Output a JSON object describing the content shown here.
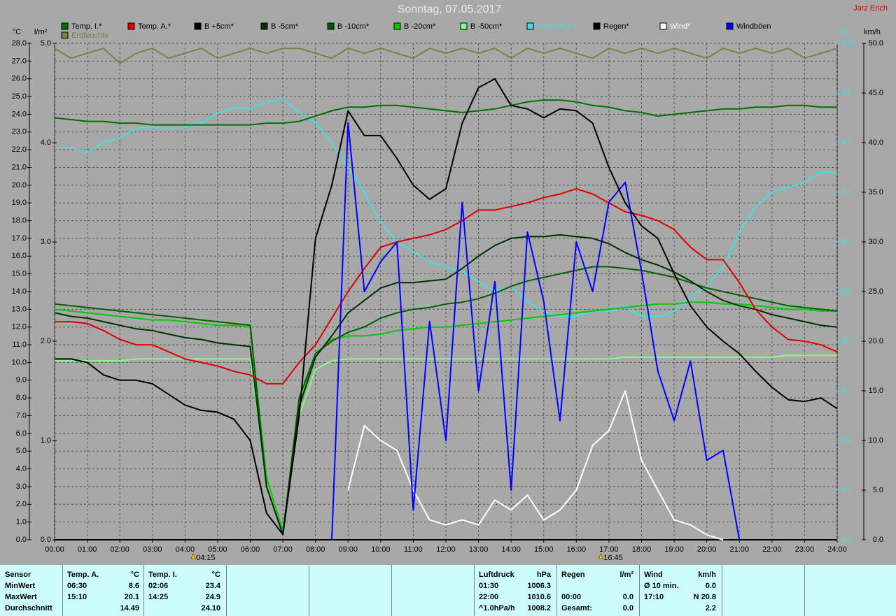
{
  "chart_data": {
    "type": "line",
    "title": "Sonntag, 07.05.2017",
    "author": "Jarz Erich",
    "y_label": "°C",
    "y2_label": "l/m²",
    "y3_label": "%",
    "y4_label": "km/h",
    "grid": true,
    "xlim": [
      0,
      24
    ],
    "xticks": [
      {
        "value": 0,
        "label": "00:00"
      },
      {
        "value": 1,
        "label": "01:00"
      },
      {
        "value": 2,
        "label": "02:00"
      },
      {
        "value": 3,
        "label": "03:00"
      },
      {
        "value": 4,
        "label": "04:00"
      },
      {
        "value": 5,
        "label": "05:00"
      },
      {
        "value": 6,
        "label": "06:00"
      },
      {
        "value": 7,
        "label": "07:00"
      },
      {
        "value": 8,
        "label": "08:00"
      },
      {
        "value": 9,
        "label": "09:00"
      },
      {
        "value": 10,
        "label": "10:00"
      },
      {
        "value": 11,
        "label": "11:00"
      },
      {
        "value": 12,
        "label": "12:00"
      },
      {
        "value": 13,
        "label": "13:00"
      },
      {
        "value": 14,
        "label": "14:00"
      },
      {
        "value": 15,
        "label": "15:00"
      },
      {
        "value": 16,
        "label": "16:00"
      },
      {
        "value": 17,
        "label": "17:00"
      },
      {
        "value": 18,
        "label": "18:00"
      },
      {
        "value": 19,
        "label": "19:00"
      },
      {
        "value": 20,
        "label": "20:00"
      },
      {
        "value": 21,
        "label": "21:00"
      },
      {
        "value": 22,
        "label": "22:00"
      },
      {
        "value": 23,
        "label": "23:00"
      },
      {
        "value": 24,
        "label": "24:00"
      }
    ],
    "ylim": [
      0,
      28
    ],
    "yticks": [
      {
        "value": 0,
        "label": "0.0"
      },
      {
        "value": 1,
        "label": "1.0"
      },
      {
        "value": 2,
        "label": "2.0"
      },
      {
        "value": 3,
        "label": "3.0"
      },
      {
        "value": 4,
        "label": "4.0"
      },
      {
        "value": 5,
        "label": "5.0"
      },
      {
        "value": 6,
        "label": "6.0"
      },
      {
        "value": 7,
        "label": "7.0"
      },
      {
        "value": 8,
        "label": "8.0"
      },
      {
        "value": 9,
        "label": "9.0"
      },
      {
        "value": 10,
        "label": "10.0"
      },
      {
        "value": 11,
        "label": "11.0"
      },
      {
        "value": 12,
        "label": "12.0"
      },
      {
        "value": 13,
        "label": "13.0"
      },
      {
        "value": 14,
        "label": "14.0"
      },
      {
        "value": 15,
        "label": "15.0"
      },
      {
        "value": 16,
        "label": "16.0"
      },
      {
        "value": 17,
        "label": "17.0"
      },
      {
        "value": 18,
        "label": "18.0"
      },
      {
        "value": 19,
        "label": "19.0"
      },
      {
        "value": 20,
        "label": "20.0"
      },
      {
        "value": 21,
        "label": "21.0"
      },
      {
        "value": 22,
        "label": "22.0"
      },
      {
        "value": 23,
        "label": "23.0"
      },
      {
        "value": 24,
        "label": "24.0"
      },
      {
        "value": 25,
        "label": "25.0"
      },
      {
        "value": 26,
        "label": "26.0"
      },
      {
        "value": 27,
        "label": "27.0"
      },
      {
        "value": 28,
        "label": "28.0"
      }
    ],
    "y2lim": [
      0,
      5
    ],
    "y2ticks": [
      {
        "value": 0,
        "label": "0.0"
      },
      {
        "value": 1,
        "label": "1.0"
      },
      {
        "value": 2,
        "label": "2.0"
      },
      {
        "value": 3,
        "label": "3.0"
      },
      {
        "value": 4,
        "label": "4.0"
      },
      {
        "value": 5,
        "label": "5.0"
      }
    ],
    "y3lim": [
      0,
      100
    ],
    "y3ticks": [
      {
        "value": 0,
        "label": "0.0"
      },
      10,
      20,
      30,
      40,
      50,
      60,
      70,
      80,
      90,
      100
    ],
    "y4lim": [
      0,
      50
    ],
    "y4ticks": [
      {
        "value": 0,
        "label": "0.0"
      },
      {
        "value": 5,
        "label": "5.0"
      },
      {
        "value": 10,
        "label": "10.0"
      },
      {
        "value": 15,
        "label": "15.0"
      },
      {
        "value": 20,
        "label": "20.0"
      },
      {
        "value": 25,
        "label": "25.0"
      },
      {
        "value": 30,
        "label": "30.0"
      },
      {
        "value": 35,
        "label": "35.0"
      },
      {
        "value": 40,
        "label": "40.0"
      },
      {
        "value": 45,
        "label": "45.0"
      },
      {
        "value": 50,
        "label": "50.0"
      }
    ],
    "annotations": [
      {
        "x": 4.25,
        "label": "04:15"
      },
      {
        "x": 16.75,
        "label": "16:45"
      }
    ],
    "x": [
      0,
      0.5,
      1,
      1.5,
      2,
      2.5,
      3,
      3.5,
      4,
      4.5,
      5,
      5.5,
      6,
      6.5,
      7,
      7.5,
      8,
      8.5,
      9,
      9.5,
      10,
      10.5,
      11,
      11.5,
      12,
      12.5,
      13,
      13.5,
      14,
      14.5,
      15,
      15.5,
      16,
      16.5,
      17,
      17.5,
      18,
      18.5,
      19,
      19.5,
      20,
      20.5,
      21,
      21.5,
      22,
      22.5,
      23,
      23.5,
      24
    ],
    "series": [
      {
        "name": "Temp. I.*",
        "color": "#007000",
        "axis": "y",
        "values": [
          23.8,
          23.7,
          23.6,
          23.6,
          23.5,
          23.5,
          23.4,
          23.4,
          23.4,
          23.4,
          23.4,
          23.4,
          23.4,
          23.5,
          23.5,
          23.6,
          23.9,
          24.2,
          24.4,
          24.4,
          24.5,
          24.5,
          24.4,
          24.3,
          24.2,
          24.1,
          24.2,
          24.3,
          24.5,
          24.7,
          24.8,
          24.8,
          24.7,
          24.5,
          24.4,
          24.2,
          24.1,
          23.9,
          24.0,
          24.1,
          24.2,
          24.3,
          24.3,
          24.4,
          24.4,
          24.5,
          24.5,
          24.4,
          24.4
        ]
      },
      {
        "name": "Temp. A.*",
        "color": "#e00000",
        "axis": "y",
        "values": [
          12.3,
          12.3,
          12.2,
          11.8,
          11.3,
          11.0,
          11.0,
          10.6,
          10.2,
          10.0,
          9.8,
          9.5,
          9.3,
          8.8,
          8.8,
          10.0,
          11.0,
          12.5,
          14.0,
          15.3,
          16.5,
          16.8,
          17.0,
          17.2,
          17.5,
          18.0,
          18.6,
          18.6,
          18.8,
          19.0,
          19.3,
          19.5,
          19.8,
          19.5,
          19.0,
          18.5,
          18.3,
          18.0,
          17.5,
          16.5,
          15.8,
          15.8,
          14.5,
          13.0,
          12.0,
          11.3,
          11.2,
          11.0,
          10.6
        ]
      },
      {
        "name": "B +5cm*",
        "color": "#000000",
        "axis": "y",
        "values": [
          10.2,
          10.2,
          10.0,
          9.3,
          9.0,
          9.0,
          8.8,
          8.2,
          7.6,
          7.3,
          7.2,
          6.8,
          5.6,
          1.5,
          0.3,
          7.0,
          17.0,
          20.0,
          24.2,
          22.8,
          22.8,
          21.5,
          20.0,
          19.2,
          19.8,
          23.5,
          25.5,
          26.0,
          24.5,
          24.3,
          23.8,
          24.3,
          24.2,
          23.5,
          21.0,
          19.0,
          17.7,
          17.0,
          15.0,
          13.2,
          12.0,
          11.2,
          10.5,
          9.5,
          8.6,
          7.9,
          7.8,
          8.0,
          7.4
        ]
      },
      {
        "name": "B -5cm*",
        "color": "#003000",
        "axis": "y",
        "values": [
          12.8,
          12.6,
          12.5,
          12.3,
          12.1,
          11.9,
          11.8,
          11.6,
          11.4,
          11.3,
          11.1,
          11.0,
          10.9,
          3.0,
          0.3,
          7.5,
          10.3,
          11.5,
          12.8,
          13.5,
          14.2,
          14.5,
          14.5,
          14.6,
          14.7,
          15.3,
          16.0,
          16.6,
          17.0,
          17.1,
          17.1,
          17.2,
          17.1,
          17.0,
          16.7,
          16.2,
          15.8,
          15.5,
          15.1,
          14.6,
          14.0,
          13.5,
          13.2,
          13.0,
          12.7,
          12.5,
          12.3,
          12.1,
          12.0
        ]
      },
      {
        "name": "B -10cm*",
        "color": "#006000",
        "axis": "y",
        "values": [
          13.3,
          13.2,
          13.1,
          13.0,
          12.9,
          12.8,
          12.7,
          12.6,
          12.5,
          12.4,
          12.3,
          12.2,
          12.1,
          3.0,
          0.3,
          8.0,
          10.5,
          11.2,
          11.7,
          12.0,
          12.5,
          12.8,
          13.0,
          13.1,
          13.3,
          13.4,
          13.6,
          13.9,
          14.3,
          14.6,
          14.8,
          15.0,
          15.2,
          15.4,
          15.4,
          15.3,
          15.2,
          15.0,
          14.8,
          14.5,
          14.2,
          14.0,
          13.8,
          13.6,
          13.4,
          13.2,
          13.1,
          13.0,
          12.9
        ]
      },
      {
        "name": "B -20cm*",
        "color": "#00cc00",
        "axis": "y",
        "values": [
          13.0,
          12.9,
          12.8,
          12.7,
          12.6,
          12.5,
          12.4,
          12.4,
          12.3,
          12.2,
          12.1,
          12.1,
          12.0,
          3.5,
          0.5,
          7.5,
          10.5,
          11.3,
          11.5,
          11.5,
          11.6,
          11.8,
          11.9,
          12.0,
          12.0,
          12.1,
          12.2,
          12.3,
          12.4,
          12.5,
          12.6,
          12.7,
          12.8,
          12.9,
          13.0,
          13.1,
          13.2,
          13.3,
          13.3,
          13.4,
          13.4,
          13.3,
          13.3,
          13.2,
          13.1,
          13.0,
          13.0,
          12.9,
          12.9
        ]
      },
      {
        "name": "B -50cm*",
        "color": "#80ff80",
        "axis": "y",
        "values": [
          10.1,
          10.1,
          10.1,
          10.1,
          10.1,
          10.2,
          10.2,
          10.2,
          10.2,
          10.2,
          10.2,
          10.2,
          10.2,
          3.5,
          0.5,
          7.0,
          9.6,
          10.1,
          10.2,
          10.2,
          10.2,
          10.2,
          10.2,
          10.2,
          10.2,
          10.2,
          10.2,
          10.2,
          10.2,
          10.2,
          10.2,
          10.2,
          10.2,
          10.2,
          10.2,
          10.3,
          10.3,
          10.3,
          10.3,
          10.3,
          10.3,
          10.3,
          10.3,
          10.3,
          10.3,
          10.4,
          10.4,
          10.4,
          10.4
        ]
      },
      {
        "name": "Feuchte A.*",
        "color": "#40e0e0",
        "axis": "y3",
        "legend_text_colored": true,
        "values": [
          79,
          79,
          78,
          80,
          81,
          83,
          83,
          83,
          83,
          84,
          86,
          87,
          87,
          88,
          89,
          86,
          84,
          80,
          75,
          70,
          64,
          60,
          58,
          56,
          55,
          54,
          52,
          50,
          51,
          48,
          46,
          45,
          45,
          46,
          46,
          47,
          45,
          45,
          46,
          49,
          51,
          55,
          62,
          67,
          70,
          71,
          72,
          74,
          74
        ]
      },
      {
        "name": "Regen*",
        "color": "#000000",
        "axis": "y2",
        "values": [
          0,
          0,
          0,
          0,
          0,
          0,
          0,
          0,
          0,
          0,
          0,
          0,
          0,
          0,
          0,
          0,
          0,
          0,
          0,
          0,
          0,
          0,
          0,
          0,
          0,
          0,
          0,
          0,
          0,
          0,
          0,
          0,
          0,
          0,
          0,
          0,
          0,
          0,
          0,
          0,
          0,
          0,
          0,
          0,
          0,
          0,
          0,
          0,
          0
        ]
      },
      {
        "name": "Wind*",
        "color": "#ffffff",
        "axis": "y4",
        "legend_text_colored": true,
        "values": [
          null,
          null,
          null,
          null,
          null,
          null,
          null,
          null,
          null,
          null,
          null,
          null,
          null,
          null,
          null,
          null,
          null,
          null,
          5.0,
          11.5,
          10.0,
          9.0,
          5.0,
          2.0,
          1.5,
          2.0,
          1.5,
          4.0,
          3.0,
          4.5,
          2.0,
          3.0,
          5.0,
          9.5,
          11.0,
          15.0,
          8.0,
          5.0,
          2.0,
          1.5,
          0.5,
          0.0,
          null,
          null,
          null,
          null,
          null,
          null,
          null
        ]
      },
      {
        "name": "Windböen",
        "color": "#0000ff",
        "axis": "y4",
        "values": [
          null,
          null,
          null,
          null,
          null,
          null,
          null,
          null,
          null,
          null,
          null,
          null,
          null,
          null,
          null,
          null,
          null,
          0,
          42,
          25,
          28,
          30,
          3,
          22,
          10,
          34,
          15,
          26,
          5,
          31,
          24,
          12,
          30,
          25,
          34,
          36,
          27,
          17,
          12,
          18,
          8,
          9,
          0,
          null,
          null,
          null,
          null,
          null,
          null
        ]
      },
      {
        "name": "Erdfeuchte",
        "color": "#808040",
        "axis": "y3",
        "legend_text_colored": true,
        "values": [
          99,
          97,
          98,
          99,
          96,
          98,
          99,
          97,
          98,
          99,
          97,
          98,
          99,
          98,
          99,
          99,
          98,
          97,
          99,
          98,
          99,
          98,
          97,
          99,
          98,
          99,
          98,
          99,
          97,
          99,
          98,
          99,
          98,
          97,
          99,
          98,
          99,
          98,
          99,
          98,
          97,
          99,
          98,
          99,
          98,
          99,
          97,
          98,
          99
        ]
      }
    ]
  },
  "stats_panel": {
    "row_labels": [
      "Sensor",
      "MinWert",
      "MaxWert",
      "Durchschnitt"
    ],
    "blocks": [
      {
        "title": "Temp. A.",
        "unit": "°C",
        "rows": [
          {
            "time": "06:30",
            "value": "8.6"
          },
          {
            "time": "15:10",
            "value": "20.1"
          },
          {
            "value": "14.49"
          }
        ]
      },
      {
        "title": "Temp. I.",
        "unit": "°C",
        "rows": [
          {
            "time": "02:06",
            "value": "23.4"
          },
          {
            "time": "14:25",
            "value": "24.9"
          },
          {
            "value": "24.10"
          }
        ]
      },
      {
        "title": "Luftdruck",
        "unit": "hPa",
        "rows": [
          {
            "time": "01:30",
            "value": "1006.3"
          },
          {
            "time": "22:00",
            "value": "1010.6"
          },
          {
            "time": "^1.0hPa/h",
            "value": "1008.2"
          }
        ]
      },
      {
        "title": "Regen",
        "unit": "l/m²",
        "rows": [
          null,
          {
            "time": "00:00",
            "value": "0.0"
          },
          {
            "time": "Gesamt:",
            "value": "0.0"
          }
        ]
      },
      {
        "title": "Wind",
        "unit": "km/h",
        "rows": [
          {
            "time": "Ø 10 min.",
            "value": "0.0"
          },
          {
            "time": "17:10",
            "value": "N 20.8"
          },
          {
            "value": "2.2"
          }
        ]
      }
    ]
  }
}
